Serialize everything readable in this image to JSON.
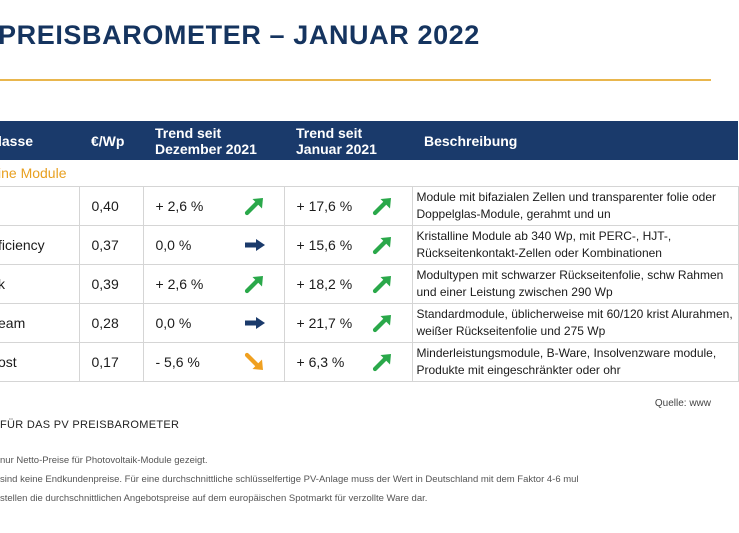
{
  "title": "PREISBAROMETER –  JANUAR 2022",
  "table": {
    "headers": {
      "klasse": "lasse",
      "price": "€/Wp",
      "trend1_line1": "Trend seit",
      "trend1_line2": "Dezember 2021",
      "trend2_line1": "Trend seit",
      "trend2_line2": "Januar 2021",
      "description": "Beschreibung"
    },
    "section_label": "ine Module",
    "rows": [
      {
        "klasse": "",
        "price": "0,40",
        "trend_dec": "+ 2,6 %",
        "trend_dec_arrow": "arrow-up-right-green",
        "trend_jan": "+ 17,6 %",
        "trend_jan_arrow": "arrow-up-right-green",
        "description": "Module mit bifazialen Zellen und transparenter folie oder Doppelglas-Module, gerahmt und un"
      },
      {
        "klasse": "ficiency",
        "price": "0,37",
        "trend_dec": "0,0 %",
        "trend_dec_arrow": "arrow-right-navy",
        "trend_jan": "+ 15,6 %",
        "trend_jan_arrow": "arrow-up-right-green",
        "description": "Kristalline Module ab 340 Wp, mit PERC-, HJT-, Rückseitenkontakt-Zellen oder Kombinationen"
      },
      {
        "klasse": "k",
        "price": "0,39",
        "trend_dec": "+ 2,6 %",
        "trend_dec_arrow": "arrow-up-right-green",
        "trend_jan": "+ 18,2 %",
        "trend_jan_arrow": "arrow-up-right-green",
        "description": "Modultypen mit schwarzer Rückseitenfolie, schw Rahmen und einer Leistung  zwischen 290 Wp"
      },
      {
        "klasse": "eam",
        "price": "0,28",
        "trend_dec": "0,0 %",
        "trend_dec_arrow": "arrow-right-navy",
        "trend_jan": "+ 21,7 %",
        "trend_jan_arrow": "arrow-up-right-green",
        "description": "Standardmodule, üblicherweise mit 60/120 krist Alurahmen, weißer Rückseitenfolie und 275 Wp"
      },
      {
        "klasse": "ost",
        "price": "0,17",
        "trend_dec": "- 5,6 %",
        "trend_dec_arrow": "arrow-down-right-orange",
        "trend_jan": "+  6,3 %",
        "trend_jan_arrow": "arrow-up-right-green",
        "description": "Minderleistungsmodule, B-Ware, Insolvenzware module, Produkte mit eingeschränkter oder ohr"
      }
    ]
  },
  "source": "Quelle: www",
  "footer_heading": "FÜR DAS PV PREISBAROMETER",
  "notes": [
    "nur Netto-Preise für Photovoltaik-Module gezeigt.",
    "sind keine Endkundenpreise. Für eine durchschnittliche schlüsselfertige PV-Anlage muss der Wert in Deutschland mit dem Faktor 4-6 mul",
    "stellen die durchschnittlichen Angebotspreise auf dem europäischen Spotmarkt für verzollte Ware dar."
  ],
  "colors": {
    "navy": "#1a3a6b",
    "accent_orange": "#e8a020",
    "green_arrow": "#2aa84a",
    "orange_arrow": "#f0a020"
  }
}
